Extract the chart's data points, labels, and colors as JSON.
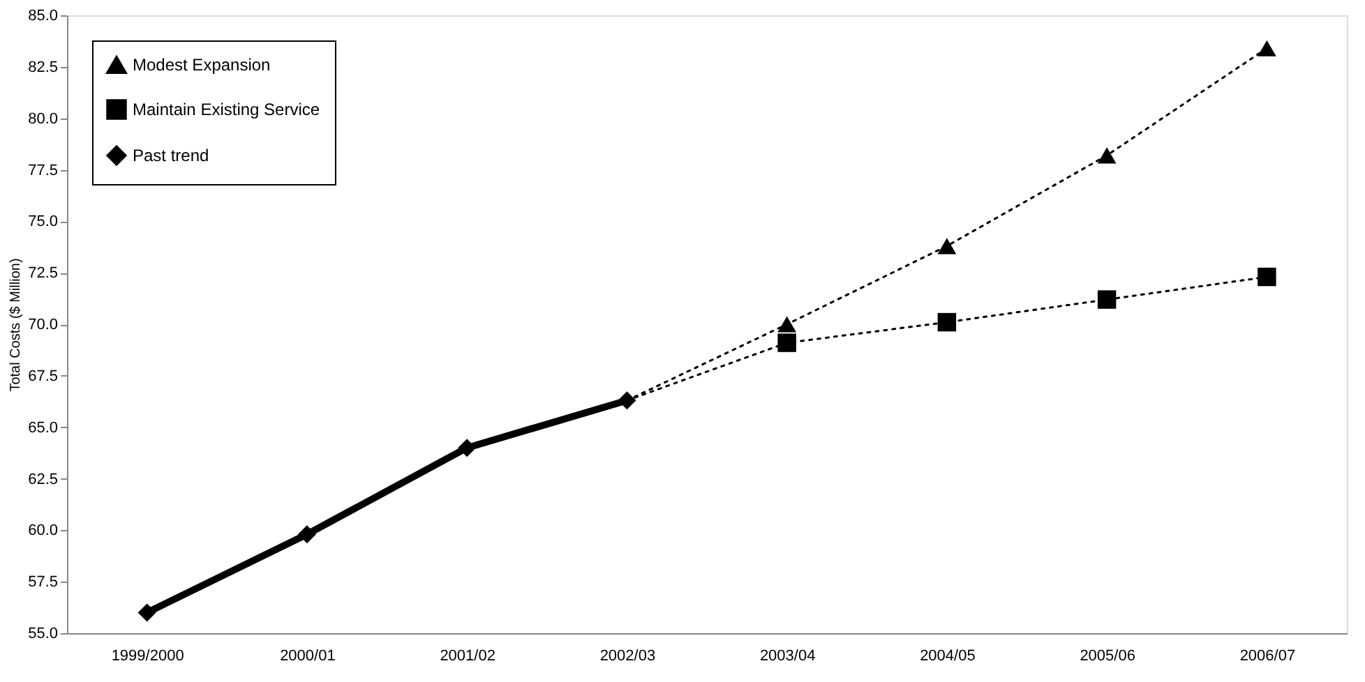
{
  "chart_data": {
    "type": "line",
    "ylabel": "Total Costs ($ Million)",
    "categories": [
      "1999/2000",
      "2000/01",
      "2001/02",
      "2002/03",
      "2003/04",
      "2004/05",
      "2005/06",
      "2006/07"
    ],
    "ylim": [
      55,
      85
    ],
    "yticks": [
      {
        "value": 55,
        "label": "55.0"
      },
      57.5,
      {
        "value": 60,
        "label": "60.0"
      },
      62.5,
      {
        "value": 65,
        "label": "65.0"
      },
      67.5,
      {
        "value": 70,
        "label": "70.0"
      },
      72.5,
      {
        "value": 75,
        "label": "75.0"
      },
      77.5,
      {
        "value": 80,
        "label": "80.0"
      },
      82.5,
      {
        "value": 85,
        "label": "85.0"
      }
    ],
    "grid": false,
    "legend": "top left",
    "series": [
      {
        "name": "Modest Expansion",
        "color": "#000000",
        "marker": "triangle",
        "line_style": "dotted",
        "values": [
          null,
          null,
          null,
          66.3,
          70.0,
          73.8,
          78.2,
          83.4
        ]
      },
      {
        "name": "Maintain Existing Service",
        "color": "#000000",
        "marker": "square",
        "line_style": "dotted",
        "values": [
          null,
          null,
          null,
          66.3,
          69.1,
          70.1,
          71.2,
          72.3
        ]
      },
      {
        "name": "Past trend",
        "color": "#000000",
        "marker": "diamond",
        "line_style": "solid",
        "values": [
          56.0,
          59.8,
          64.0,
          66.3,
          null,
          null,
          null,
          null
        ]
      }
    ]
  }
}
